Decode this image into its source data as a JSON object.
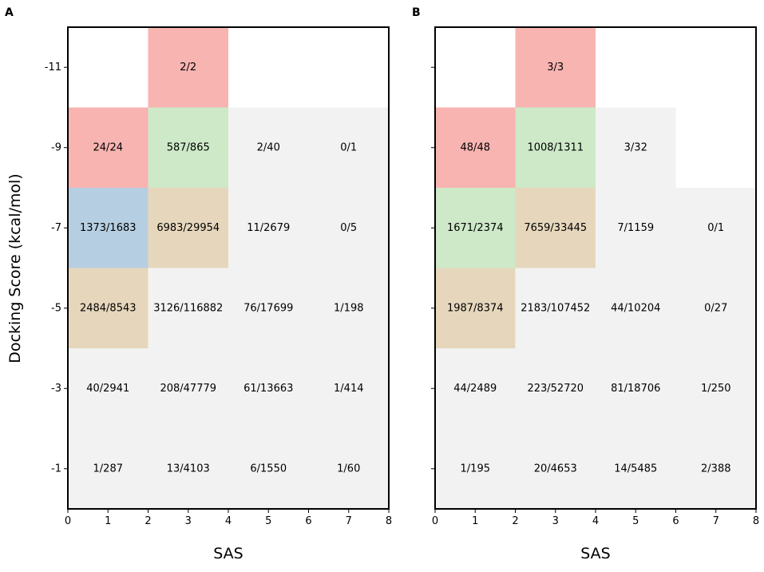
{
  "ylabel": "Docking Score (kcal/mol)",
  "colors": {
    "grey": "#f2f2f2",
    "red": "#f8b4b1",
    "green": "#cde9c8",
    "blue": "#b6cee1",
    "tan": "#e6d7bc",
    "white": "#ffffff"
  },
  "chart_data": [
    {
      "type": "heatmap",
      "panel": "A",
      "xlabel": "SAS",
      "xlim": [
        0,
        8
      ],
      "ylim": [
        0,
        -12
      ],
      "xticks": [
        "0",
        "1",
        "2",
        "3",
        "4",
        "5",
        "6",
        "7",
        "8"
      ],
      "yticks": [
        "-11",
        "-9",
        "-7",
        "-5",
        "-3",
        "-1"
      ],
      "cells": [
        {
          "x0": 2,
          "x1": 4,
          "y0": -12,
          "y1": -10,
          "label": "2/2",
          "color": "red"
        },
        {
          "x0": 0,
          "x1": 2,
          "y0": -10,
          "y1": -8,
          "label": "24/24",
          "color": "red"
        },
        {
          "x0": 2,
          "x1": 4,
          "y0": -10,
          "y1": -8,
          "label": "587/865",
          "color": "green"
        },
        {
          "x0": 4,
          "x1": 6,
          "y0": -10,
          "y1": -8,
          "label": "2/40",
          "color": "grey"
        },
        {
          "x0": 6,
          "x1": 8,
          "y0": -10,
          "y1": -8,
          "label": "0/1",
          "color": "grey"
        },
        {
          "x0": 0,
          "x1": 2,
          "y0": -8,
          "y1": -6,
          "label": "1373/1683",
          "color": "blue"
        },
        {
          "x0": 2,
          "x1": 4,
          "y0": -8,
          "y1": -6,
          "label": "6983/29954",
          "color": "tan"
        },
        {
          "x0": 4,
          "x1": 6,
          "y0": -8,
          "y1": -6,
          "label": "11/2679",
          "color": "grey"
        },
        {
          "x0": 6,
          "x1": 8,
          "y0": -8,
          "y1": -6,
          "label": "0/5",
          "color": "grey"
        },
        {
          "x0": 0,
          "x1": 2,
          "y0": -6,
          "y1": -4,
          "label": "2484/8543",
          "color": "tan"
        },
        {
          "x0": 2,
          "x1": 4,
          "y0": -6,
          "y1": -4,
          "label": "3126/116882",
          "color": "grey"
        },
        {
          "x0": 4,
          "x1": 6,
          "y0": -6,
          "y1": -4,
          "label": "76/17699",
          "color": "grey"
        },
        {
          "x0": 6,
          "x1": 8,
          "y0": -6,
          "y1": -4,
          "label": "1/198",
          "color": "grey"
        },
        {
          "x0": 0,
          "x1": 2,
          "y0": -4,
          "y1": -2,
          "label": "40/2941",
          "color": "grey"
        },
        {
          "x0": 2,
          "x1": 4,
          "y0": -4,
          "y1": -2,
          "label": "208/47779",
          "color": "grey"
        },
        {
          "x0": 4,
          "x1": 6,
          "y0": -4,
          "y1": -2,
          "label": "61/13663",
          "color": "grey"
        },
        {
          "x0": 6,
          "x1": 8,
          "y0": -4,
          "y1": -2,
          "label": "1/414",
          "color": "grey"
        },
        {
          "x0": 0,
          "x1": 2,
          "y0": -2,
          "y1": 0,
          "label": "1/287",
          "color": "grey"
        },
        {
          "x0": 2,
          "x1": 4,
          "y0": -2,
          "y1": 0,
          "label": "13/4103",
          "color": "grey"
        },
        {
          "x0": 4,
          "x1": 6,
          "y0": -2,
          "y1": 0,
          "label": "6/1550",
          "color": "grey"
        },
        {
          "x0": 6,
          "x1": 8,
          "y0": -2,
          "y1": 0,
          "label": "1/60",
          "color": "grey"
        }
      ]
    },
    {
      "type": "heatmap",
      "panel": "B",
      "xlabel": "SAS",
      "xlim": [
        0,
        8
      ],
      "ylim": [
        0,
        -12
      ],
      "xticks": [
        "0",
        "1",
        "2",
        "3",
        "4",
        "5",
        "6",
        "7",
        "8"
      ],
      "yticks": [
        "-11",
        "-9",
        "-7",
        "-5",
        "-3",
        "-1"
      ],
      "cells": [
        {
          "x0": 2,
          "x1": 4,
          "y0": -12,
          "y1": -10,
          "label": "3/3",
          "color": "red"
        },
        {
          "x0": 0,
          "x1": 2,
          "y0": -10,
          "y1": -8,
          "label": "48/48",
          "color": "red"
        },
        {
          "x0": 2,
          "x1": 4,
          "y0": -10,
          "y1": -8,
          "label": "1008/1311",
          "color": "green"
        },
        {
          "x0": 4,
          "x1": 6,
          "y0": -10,
          "y1": -8,
          "label": "3/32",
          "color": "grey"
        },
        {
          "x0": 0,
          "x1": 2,
          "y0": -8,
          "y1": -6,
          "label": "1671/2374",
          "color": "green"
        },
        {
          "x0": 2,
          "x1": 4,
          "y0": -8,
          "y1": -6,
          "label": "7659/33445",
          "color": "tan"
        },
        {
          "x0": 4,
          "x1": 6,
          "y0": -8,
          "y1": -6,
          "label": "7/1159",
          "color": "grey"
        },
        {
          "x0": 6,
          "x1": 8,
          "y0": -8,
          "y1": -6,
          "label": "0/1",
          "color": "grey"
        },
        {
          "x0": 0,
          "x1": 2,
          "y0": -6,
          "y1": -4,
          "label": "1987/8374",
          "color": "tan"
        },
        {
          "x0": 2,
          "x1": 4,
          "y0": -6,
          "y1": -4,
          "label": "2183/107452",
          "color": "grey"
        },
        {
          "x0": 4,
          "x1": 6,
          "y0": -6,
          "y1": -4,
          "label": "44/10204",
          "color": "grey"
        },
        {
          "x0": 6,
          "x1": 8,
          "y0": -6,
          "y1": -4,
          "label": "0/27",
          "color": "grey"
        },
        {
          "x0": 0,
          "x1": 2,
          "y0": -4,
          "y1": -2,
          "label": "44/2489",
          "color": "grey"
        },
        {
          "x0": 2,
          "x1": 4,
          "y0": -4,
          "y1": -2,
          "label": "223/52720",
          "color": "grey"
        },
        {
          "x0": 4,
          "x1": 6,
          "y0": -4,
          "y1": -2,
          "label": "81/18706",
          "color": "grey"
        },
        {
          "x0": 6,
          "x1": 8,
          "y0": -4,
          "y1": -2,
          "label": "1/250",
          "color": "grey"
        },
        {
          "x0": 0,
          "x1": 2,
          "y0": -2,
          "y1": 0,
          "label": "1/195",
          "color": "grey"
        },
        {
          "x0": 2,
          "x1": 4,
          "y0": -2,
          "y1": 0,
          "label": "20/4653",
          "color": "grey"
        },
        {
          "x0": 4,
          "x1": 6,
          "y0": -2,
          "y1": 0,
          "label": "14/5485",
          "color": "grey"
        },
        {
          "x0": 6,
          "x1": 8,
          "y0": -2,
          "y1": 0,
          "label": "2/388",
          "color": "grey"
        }
      ]
    }
  ]
}
